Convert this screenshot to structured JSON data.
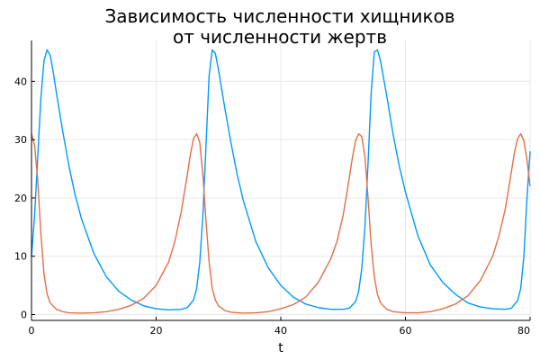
{
  "chart_data": {
    "type": "line",
    "title_lines": [
      "Зависимость численности хищников",
      "от численности жертв"
    ],
    "xlabel": "t",
    "ylabel": "",
    "xlim": [
      0,
      80
    ],
    "ylim": [
      -1,
      47
    ],
    "x_ticks": [
      0,
      20,
      40,
      60,
      80
    ],
    "y_ticks": [
      0,
      10,
      20,
      30,
      40
    ],
    "x_tick_labels": [
      "0",
      "20",
      "40",
      "60",
      "80"
    ],
    "y_tick_labels": [
      "0",
      "10",
      "20",
      "30",
      "40"
    ],
    "grid": true,
    "legend": "none",
    "series": [
      {
        "color": "#009AFA",
        "x": [
          0,
          0.5,
          1,
          1.5,
          2,
          2.5,
          3,
          3.5,
          4,
          5,
          6,
          7,
          8,
          10,
          12,
          14,
          16,
          18,
          20,
          22,
          24,
          25,
          26,
          26.5,
          27,
          27.5,
          28,
          28.5,
          29,
          29.5,
          30,
          31,
          32,
          33,
          34,
          36,
          38,
          40,
          42,
          44,
          46,
          48,
          50,
          51,
          52,
          52.5,
          53,
          53.5,
          54,
          54.5,
          55,
          55.5,
          56,
          57,
          58,
          59,
          60,
          62,
          64,
          66,
          68,
          70,
          72,
          74,
          76,
          77,
          78,
          78.5,
          79,
          79.5,
          80
        ],
        "values": [
          10,
          17,
          27,
          37,
          43.5,
          45.4,
          44.5,
          41.5,
          38,
          31.5,
          25.5,
          20.5,
          16.5,
          10.5,
          6.5,
          4,
          2.5,
          1.5,
          1,
          0.8,
          0.9,
          1.2,
          2.5,
          4.5,
          9,
          17,
          29,
          41,
          45.4,
          44.8,
          42,
          35.5,
          29.5,
          24,
          19.5,
          12.5,
          8,
          5,
          3,
          1.8,
          1.2,
          0.9,
          0.9,
          1.1,
          2.2,
          4,
          8,
          15,
          26,
          38,
          45,
          45.4,
          43.5,
          37.5,
          31,
          25.5,
          21,
          13.5,
          8.5,
          5.5,
          3.5,
          2,
          1.3,
          1,
          0.9,
          1.1,
          2.4,
          4.5,
          10,
          20,
          28
        ]
      },
      {
        "color": "#E26F46",
        "x": [
          0,
          0.5,
          1,
          1.5,
          2,
          2.5,
          3,
          4,
          5,
          6,
          8,
          10,
          12,
          14,
          16,
          18,
          20,
          22,
          23,
          24,
          25,
          25.5,
          26,
          26.5,
          27,
          27.5,
          28,
          28.5,
          29,
          29.5,
          30,
          31,
          32,
          34,
          36,
          38,
          40,
          42,
          44,
          46,
          48,
          49,
          50,
          51,
          51.5,
          52,
          52.5,
          53,
          53.5,
          54,
          54.5,
          55,
          55.5,
          56,
          57,
          58,
          60,
          62,
          64,
          66,
          68,
          70,
          72,
          74,
          75,
          76,
          77,
          77.5,
          78,
          78.5,
          79,
          79.5,
          80
        ],
        "values": [
          31,
          29,
          23,
          14,
          7,
          3.5,
          2,
          0.9,
          0.5,
          0.3,
          0.25,
          0.3,
          0.5,
          0.9,
          1.6,
          2.8,
          5,
          9,
          12.5,
          17.5,
          24,
          27.5,
          30.2,
          31,
          29.5,
          24,
          16,
          9,
          4.5,
          2.5,
          1.5,
          0.7,
          0.4,
          0.25,
          0.3,
          0.5,
          1,
          1.7,
          3,
          5.5,
          9.5,
          12.5,
          17,
          23.5,
          27,
          29.8,
          31,
          30.5,
          27,
          20,
          12,
          6.5,
          3.5,
          2,
          0.9,
          0.5,
          0.3,
          0.3,
          0.5,
          1,
          1.8,
          3.2,
          5.8,
          10,
          13.5,
          18,
          24.5,
          27.8,
          30.2,
          31,
          29.8,
          26.5,
          22
        ]
      }
    ]
  }
}
